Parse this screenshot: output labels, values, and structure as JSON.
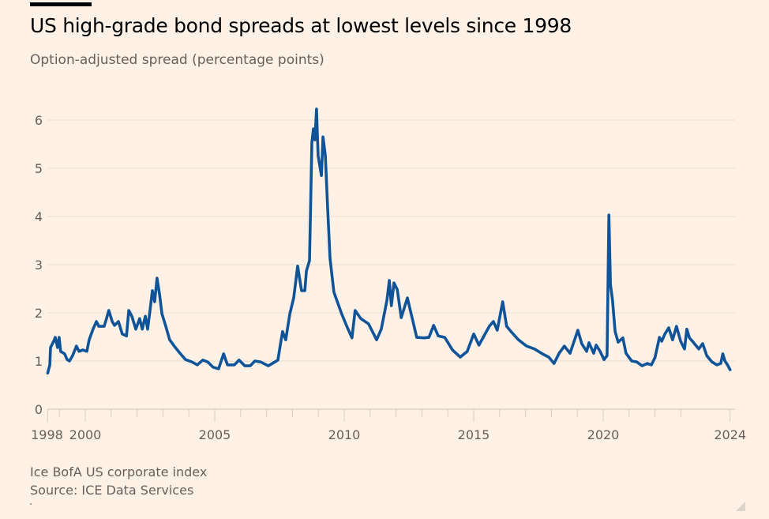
{
  "header": {
    "title": "US high-grade bond spreads at lowest levels since 1998",
    "subtitle": "Option-adjusted spread (percentage points)"
  },
  "footer": {
    "note": "Ice BofA US corporate index",
    "source": "Source: ICE Data Services"
  },
  "colors": {
    "line": "#0f5499",
    "background": "#fff1e5",
    "grid": "#e9ddd3",
    "text": "#66605c"
  },
  "chart_data": {
    "type": "line",
    "title": "US high-grade bond spreads at lowest levels since 1998",
    "subtitle": "Option-adjusted spread (percentage points)",
    "xlabel": "",
    "ylabel": "Option-adjusted spread (percentage points)",
    "xlim": [
      1998.55,
      2024.9
    ],
    "ylim": [
      0,
      6
    ],
    "grid": true,
    "legend": "none",
    "y_ticks": [
      "0",
      "1",
      "2",
      "3",
      "4",
      "5",
      "6"
    ],
    "x_tick_labels": [
      {
        "label": "1998",
        "x": 1998.55
      },
      {
        "label": "2000",
        "x": 2000
      },
      {
        "label": "2005",
        "x": 2005
      },
      {
        "label": "2010",
        "x": 2010
      },
      {
        "label": "2015",
        "x": 2015
      },
      {
        "label": "2020",
        "x": 2020
      },
      {
        "label": "2024",
        "x": 2024.9
      }
    ],
    "x_minor_ticks": [
      1999,
      2001,
      2002,
      2003,
      2004,
      2006,
      2007,
      2008,
      2009,
      2011,
      2012,
      2013,
      2014,
      2016,
      2017,
      2018,
      2019,
      2021,
      2022,
      2023
    ],
    "series": [
      {
        "name": "Option-adjusted spread",
        "x": [
          1998.55,
          1998.63,
          1998.66,
          1998.78,
          1998.84,
          1998.93,
          1998.99,
          1999.05,
          1999.2,
          1999.3,
          1999.39,
          1999.51,
          1999.66,
          1999.76,
          1999.91,
          2000.06,
          2000.15,
          2000.3,
          2000.43,
          2000.52,
          2000.73,
          2000.82,
          2000.91,
          2001.04,
          2001.13,
          2001.28,
          2001.43,
          2001.59,
          2001.68,
          2001.8,
          2001.95,
          2002.1,
          2002.2,
          2002.32,
          2002.41,
          2002.5,
          2002.59,
          2002.68,
          2002.77,
          2002.87,
          2002.96,
          2003.11,
          2003.26,
          2003.48,
          2003.66,
          2003.87,
          2004.12,
          2004.33,
          2004.54,
          2004.73,
          2004.94,
          2005.15,
          2005.34,
          2005.49,
          2005.76,
          2005.94,
          2006.16,
          2006.37,
          2006.55,
          2006.77,
          2007.07,
          2007.29,
          2007.44,
          2007.53,
          2007.62,
          2007.74,
          2007.9,
          2008.05,
          2008.2,
          2008.35,
          2008.48,
          2008.54,
          2008.66,
          2008.7,
          2008.75,
          2008.81,
          2008.87,
          2008.93,
          2008.99,
          2009.12,
          2009.18,
          2009.27,
          2009.36,
          2009.45,
          2009.6,
          2009.9,
          2010.1,
          2010.3,
          2010.42,
          2010.64,
          2010.94,
          2011.25,
          2011.43,
          2011.65,
          2011.74,
          2011.82,
          2011.92,
          2012.05,
          2012.2,
          2012.44,
          2012.62,
          2012.8,
          2013.08,
          2013.27,
          2013.45,
          2013.63,
          2013.88,
          2014.18,
          2014.48,
          2014.75,
          2015.0,
          2015.2,
          2015.6,
          2015.76,
          2015.91,
          2016.12,
          2016.27,
          2016.46,
          2016.73,
          2017.04,
          2017.35,
          2017.65,
          2017.9,
          2018.1,
          2018.3,
          2018.5,
          2018.72,
          2019.02,
          2019.17,
          2019.36,
          2019.45,
          2019.63,
          2019.73,
          2019.88,
          2020.03,
          2020.15,
          2020.22,
          2020.28,
          2020.36,
          2020.46,
          2020.58,
          2020.76,
          2020.88,
          2021.1,
          2021.3,
          2021.5,
          2021.7,
          2021.86,
          2022.0,
          2022.17,
          2022.26,
          2022.38,
          2022.53,
          2022.68,
          2022.83,
          2022.99,
          2023.14,
          2023.23,
          2023.33,
          2023.48,
          2023.69,
          2023.84,
          2024.0,
          2024.2,
          2024.39,
          2024.54,
          2024.62,
          2024.7,
          2024.8,
          2024.9
        ],
        "values": [
          0.75,
          0.92,
          1.28,
          1.41,
          1.49,
          1.28,
          1.49,
          1.2,
          1.15,
          1.03,
          1.0,
          1.11,
          1.31,
          1.2,
          1.23,
          1.2,
          1.44,
          1.66,
          1.82,
          1.72,
          1.72,
          1.88,
          2.05,
          1.82,
          1.74,
          1.82,
          1.56,
          1.52,
          2.05,
          1.93,
          1.66,
          1.88,
          1.66,
          1.93,
          1.66,
          2.05,
          2.46,
          2.23,
          2.72,
          2.38,
          1.98,
          1.72,
          1.44,
          1.28,
          1.16,
          1.03,
          0.98,
          0.92,
          1.02,
          0.98,
          0.87,
          0.84,
          1.15,
          0.92,
          0.92,
          1.02,
          0.9,
          0.9,
          1.0,
          0.98,
          0.9,
          0.97,
          1.02,
          1.33,
          1.61,
          1.44,
          1.98,
          2.31,
          2.97,
          2.46,
          2.46,
          2.87,
          3.08,
          4.2,
          5.54,
          5.82,
          5.59,
          6.23,
          5.26,
          4.85,
          5.65,
          5.26,
          4.17,
          3.13,
          2.43,
          1.98,
          1.72,
          1.48,
          2.05,
          1.88,
          1.77,
          1.44,
          1.66,
          2.26,
          2.67,
          2.15,
          2.62,
          2.48,
          1.9,
          2.31,
          1.9,
          1.49,
          1.48,
          1.49,
          1.74,
          1.52,
          1.49,
          1.23,
          1.08,
          1.2,
          1.56,
          1.33,
          1.72,
          1.82,
          1.64,
          2.23,
          1.72,
          1.6,
          1.44,
          1.31,
          1.25,
          1.15,
          1.08,
          0.95,
          1.16,
          1.31,
          1.16,
          1.64,
          1.36,
          1.2,
          1.38,
          1.16,
          1.33,
          1.2,
          1.03,
          1.11,
          4.03,
          2.59,
          2.26,
          1.61,
          1.39,
          1.48,
          1.16,
          1.0,
          0.98,
          0.9,
          0.95,
          0.92,
          1.07,
          1.49,
          1.41,
          1.56,
          1.69,
          1.44,
          1.72,
          1.41,
          1.25,
          1.66,
          1.48,
          1.39,
          1.25,
          1.36,
          1.11,
          0.98,
          0.92,
          0.95,
          1.15,
          1.0,
          0.92,
          0.82
        ]
      }
    ]
  }
}
